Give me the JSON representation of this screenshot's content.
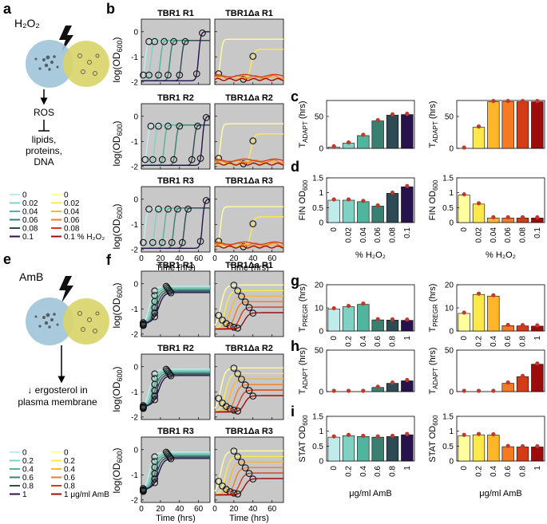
{
  "letters": {
    "a": "a",
    "b": "b",
    "c": "c",
    "d": "d",
    "e": "e",
    "f": "f",
    "g": "g",
    "h": "h",
    "i": "i"
  },
  "panel_a": {
    "title": "H₂O₂",
    "steps": [
      "ROS",
      "lipids,",
      "proteins,",
      "DNA"
    ],
    "legend_left": [
      "0",
      "0.02",
      "0.04",
      "0.06",
      "0.08",
      "0.1"
    ],
    "legend_right": [
      "0",
      "0.02",
      "0.04",
      "0.06",
      "0.08",
      "0.1 % H₂O₂"
    ]
  },
  "panel_e": {
    "title": "AmB",
    "steps": [
      "↓ ergosterol in",
      "plasma membrane"
    ],
    "legend_left": [
      "0",
      "0.2",
      "0.4",
      "0.6",
      "0.8",
      "1"
    ],
    "legend_right": [
      "0",
      "0.2",
      "0.4",
      "0.6",
      "0.8",
      "1 μg/ml AmB"
    ]
  },
  "colors": {
    "wt": [
      "#bfecea",
      "#7fd1c4",
      "#4fb59c",
      "#3a7f70",
      "#2e4a55",
      "#28124d"
    ],
    "mut": [
      "#ffff9e",
      "#ffe94a",
      "#ffb62a",
      "#f47a25",
      "#d23c17",
      "#9c0c0c"
    ],
    "cell_blue": "#9ec4d8",
    "cell_yellow": "#d9d468",
    "plot_bg": "#c8c8c8",
    "point": "#c0392b"
  },
  "growth_axes": {
    "ylabel": "log(OD600)",
    "xlabel": "Time (hrs)",
    "b_yticks": [
      "-2",
      "-1",
      "0"
    ],
    "b_xticks": [
      "0",
      "20",
      "40",
      "60"
    ],
    "f_yticks": [
      "-2",
      "-1",
      "0"
    ],
    "f_xticks": [
      "0",
      "20",
      "40",
      "60"
    ]
  },
  "panel_b_titles": [
    [
      "TBR1 R1",
      "TBR1Δa R1"
    ],
    [
      "TBR1 R2",
      "TBR1Δa R2"
    ],
    [
      "TBR1 R3",
      "TBR1Δa R3"
    ]
  ],
  "panel_f_titles": [
    [
      "TBR1 R1",
      "TBR1Δa R1"
    ],
    [
      "TBR1 R2",
      "TBR1Δa R2"
    ],
    [
      "TBR1 R3",
      "TBR1Δa R3"
    ]
  ],
  "chart_data": [
    {
      "panel": "c",
      "type": "bar",
      "strain": "TBR1",
      "categories": [
        "0",
        "0.02",
        "0.04",
        "0.06",
        "0.08",
        "0.1"
      ],
      "values": [
        2,
        8,
        20,
        43,
        52,
        53
      ],
      "ylabel": "T ADAPT (hrs)",
      "yticks": [
        "0",
        "50"
      ],
      "ylim": [
        0,
        75
      ],
      "xtick_labels": false
    },
    {
      "panel": "c",
      "type": "bar",
      "strain": "TBR1Δa",
      "categories": [
        "0",
        "0.02",
        "0.04",
        "0.06",
        "0.08",
        "0.1"
      ],
      "values": [
        0,
        33,
        73,
        73,
        73,
        73
      ],
      "ylabel": "T ADAPT (hrs)",
      "yticks": [
        "0",
        "50"
      ],
      "ylim": [
        0,
        75
      ],
      "xtick_labels": false
    },
    {
      "panel": "d",
      "type": "bar",
      "strain": "TBR1",
      "categories": [
        "0",
        "0.02",
        "0.04",
        "0.06",
        "0.08",
        "0.1"
      ],
      "values": [
        0.75,
        0.75,
        0.7,
        0.55,
        0.98,
        1.2
      ],
      "ylabel": "FIN OD600",
      "xlabel": "% H₂O₂",
      "yticks": [
        "0",
        "0.5",
        "1",
        "1.5"
      ],
      "ylim": [
        0,
        1.5
      ],
      "xtick_labels": true
    },
    {
      "panel": "d",
      "type": "bar",
      "strain": "TBR1Δa",
      "categories": [
        "0",
        "0.02",
        "0.04",
        "0.06",
        "0.08",
        "0.1"
      ],
      "values": [
        0.92,
        0.62,
        0.15,
        0.15,
        0.15,
        0.15
      ],
      "ylabel": "FIN OD600",
      "xlabel": "% H₂O₂",
      "yticks": [
        "0",
        "0.5",
        "1",
        "1.5"
      ],
      "ylim": [
        0,
        1.5
      ],
      "xtick_labels": true
    },
    {
      "panel": "g",
      "type": "bar",
      "strain": "TBR1",
      "categories": [
        "0",
        "0.2",
        "0.4",
        "0.6",
        "0.8",
        "1"
      ],
      "values": [
        9.5,
        10.5,
        11.5,
        4.8,
        4.7,
        4.6
      ],
      "ylabel": "T PREGR (hrs)",
      "yticks": [
        "0",
        "10",
        "20"
      ],
      "ylim": [
        0,
        20
      ],
      "xtick_labels": true
    },
    {
      "panel": "g",
      "type": "bar",
      "strain": "TBR1Δa",
      "categories": [
        "0",
        "0.2",
        "0.4",
        "0.6",
        "0.8",
        "1"
      ],
      "values": [
        7.6,
        15.8,
        15.1,
        2.3,
        2.2,
        2.1
      ],
      "ylabel": "T PREGR (hrs)",
      "yticks": [
        "0",
        "10",
        "20"
      ],
      "ylim": [
        0,
        20
      ],
      "xtick_labels": true
    },
    {
      "panel": "h",
      "type": "bar",
      "strain": "TBR1",
      "categories": [
        "0",
        "0.2",
        "0.4",
        "0.6",
        "0.8",
        "1"
      ],
      "values": [
        0,
        0,
        0,
        5,
        10,
        13
      ],
      "ylabel": "T ADAPT (hrs)",
      "yticks": [
        "0",
        "50"
      ],
      "ylim": [
        0,
        50
      ],
      "xtick_labels": false
    },
    {
      "panel": "h",
      "type": "bar",
      "strain": "TBR1Δa",
      "categories": [
        "0",
        "0.2",
        "0.4",
        "0.6",
        "0.8",
        "1"
      ],
      "values": [
        0,
        0,
        0,
        10,
        18,
        33
      ],
      "ylabel": "T ADAPT (hrs)",
      "yticks": [
        "0",
        "50"
      ],
      "ylim": [
        0,
        50
      ],
      "xtick_labels": false
    },
    {
      "panel": "i",
      "type": "bar",
      "strain": "TBR1",
      "categories": [
        "0",
        "0.2",
        "0.4",
        "0.6",
        "0.8",
        "1"
      ],
      "values": [
        0.8,
        0.85,
        0.82,
        0.8,
        0.82,
        0.88
      ],
      "ylabel": "STAT OD600",
      "xlabel": "μg/ml AmB",
      "yticks": [
        "0",
        "0.5",
        "1",
        "1.5"
      ],
      "ylim": [
        0,
        1.5
      ],
      "xtick_labels": true
    },
    {
      "panel": "i",
      "type": "bar",
      "strain": "TBR1Δa",
      "categories": [
        "0",
        "0.2",
        "0.4",
        "0.6",
        "0.8",
        "1"
      ],
      "values": [
        0.85,
        0.88,
        0.87,
        0.48,
        0.47,
        0.47
      ],
      "ylabel": "STAT OD600",
      "xlabel": "μg/ml AmB",
      "yticks": [
        "0",
        "0.5",
        "1",
        "1.5"
      ],
      "ylim": [
        0,
        1.5
      ],
      "xtick_labels": true
    }
  ]
}
